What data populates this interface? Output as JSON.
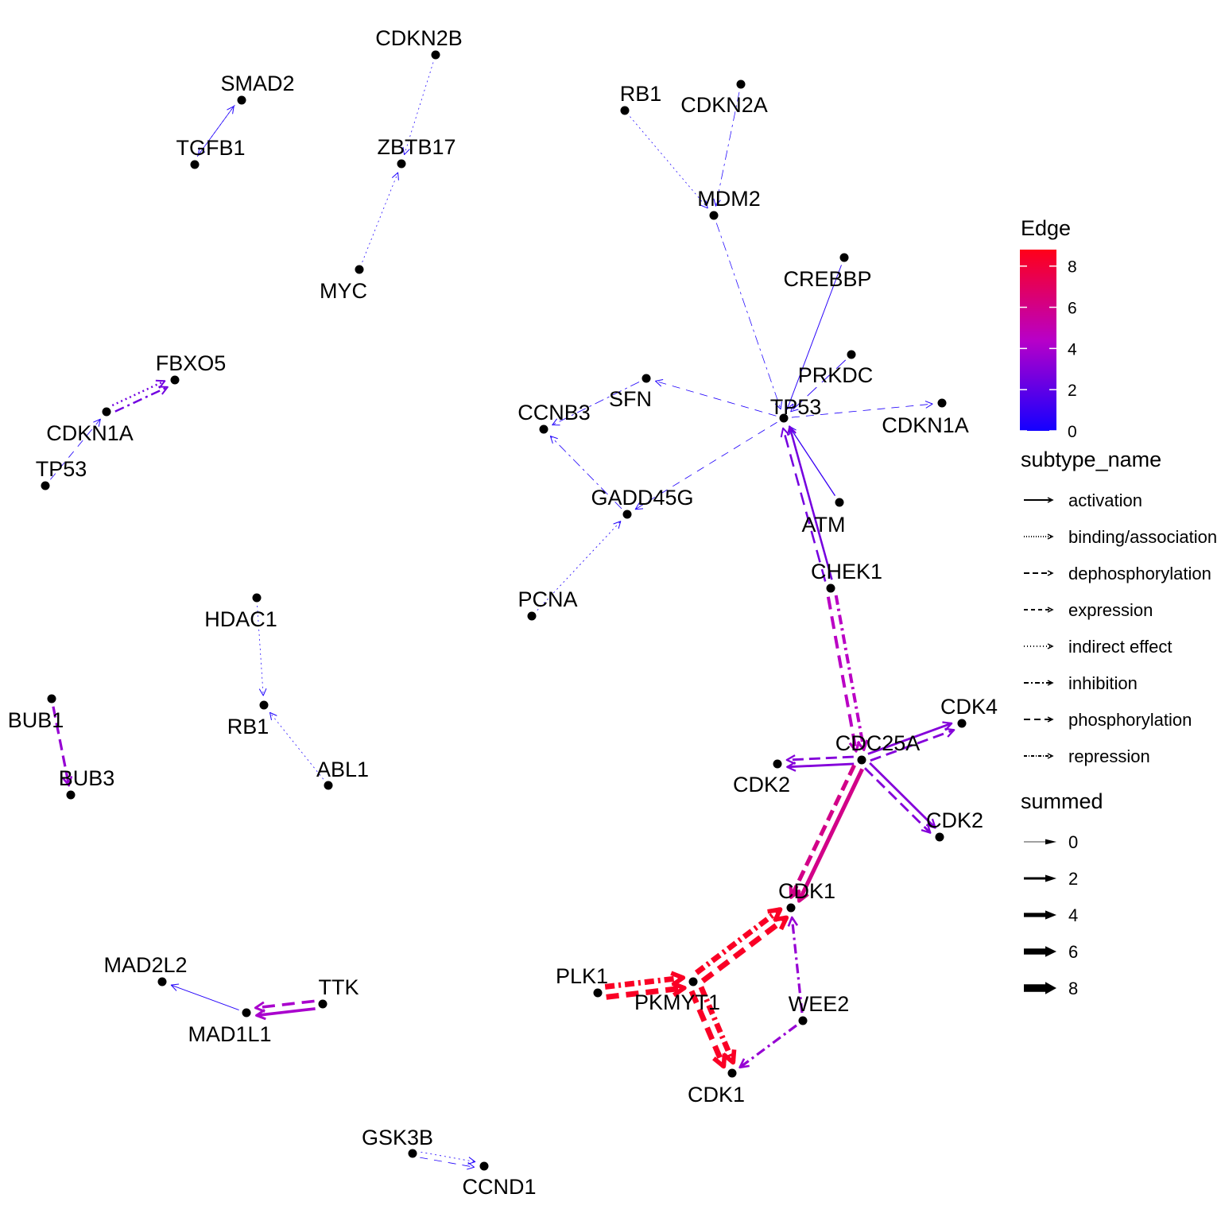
{
  "legend": {
    "edge_title": "Edge",
    "colorbar_ticks": [
      "8",
      "6",
      "4",
      "2",
      "0"
    ],
    "colorbar_low": "#1400ff",
    "colorbar_mid": "#b800c8",
    "colorbar_high": "#ff0019",
    "subtype_title": "subtype_name",
    "subtypes": [
      "activation",
      "binding/association",
      "dephosphorylation",
      "expression",
      "indirect effect",
      "inhibition",
      "phosphorylation",
      "repression"
    ],
    "summed_title": "summed",
    "summed_values": [
      "0",
      "2",
      "4",
      "6",
      "8"
    ]
  },
  "nodes": [
    {
      "id": "smad2",
      "label": "SMAD2"
    },
    {
      "id": "tgfb1",
      "label": "TGFB1"
    },
    {
      "id": "cdkn2b",
      "label": "CDKN2B"
    },
    {
      "id": "zbtb17",
      "label": "ZBTB17"
    },
    {
      "id": "myc",
      "label": "MYC"
    },
    {
      "id": "rb1_top",
      "label": "RB1"
    },
    {
      "id": "cdkn2a",
      "label": "CDKN2A"
    },
    {
      "id": "mdm2",
      "label": "MDM2"
    },
    {
      "id": "crebbp",
      "label": "CREBBP"
    },
    {
      "id": "prkdc",
      "label": "PRKDC"
    },
    {
      "id": "tp53_main",
      "label": "TP53"
    },
    {
      "id": "cdkn1a_main",
      "label": "CDKN1A"
    },
    {
      "id": "sfn",
      "label": "SFN"
    },
    {
      "id": "ccnb3",
      "label": "CCNB3"
    },
    {
      "id": "gadd45g",
      "label": "GADD45G"
    },
    {
      "id": "pcna",
      "label": "PCNA"
    },
    {
      "id": "atm",
      "label": "ATM"
    },
    {
      "id": "chek1",
      "label": "CHEK1"
    },
    {
      "id": "fbxo5",
      "label": "FBXO5"
    },
    {
      "id": "cdkn1a_left",
      "label": "CDKN1A"
    },
    {
      "id": "tp53_left",
      "label": "TP53"
    },
    {
      "id": "hdac1",
      "label": "HDAC1"
    },
    {
      "id": "rb1_mid",
      "label": "RB1"
    },
    {
      "id": "abl1",
      "label": "ABL1"
    },
    {
      "id": "bub1",
      "label": "BUB1"
    },
    {
      "id": "bub3",
      "label": "BUB3"
    },
    {
      "id": "cdk4",
      "label": "CDK4"
    },
    {
      "id": "cdc25a",
      "label": "CDC25A"
    },
    {
      "id": "cdk2_a",
      "label": "CDK2"
    },
    {
      "id": "cdk2_b",
      "label": "CDK2"
    },
    {
      "id": "cdk1_top",
      "label": "CDK1"
    },
    {
      "id": "plk1",
      "label": "PLK1"
    },
    {
      "id": "pkmyt1",
      "label": "PKMYT1"
    },
    {
      "id": "wee2",
      "label": "WEE2"
    },
    {
      "id": "cdk1_bottom",
      "label": "CDK1"
    },
    {
      "id": "mad2l2",
      "label": "MAD2L2"
    },
    {
      "id": "ttk",
      "label": "TTK"
    },
    {
      "id": "mad1l1",
      "label": "MAD1L1"
    },
    {
      "id": "gsk3b",
      "label": "GSK3B"
    },
    {
      "id": "ccnd1",
      "label": "CCND1"
    }
  ],
  "edges": [
    {
      "from": "tgfb1",
      "to": "smad2",
      "subtype": "activation",
      "summed": 0.3
    },
    {
      "from": "smad2",
      "to": "tgfb1",
      "subtype": "binding/association",
      "summed": 0.3
    },
    {
      "from": "cdkn2b",
      "to": "zbtb17",
      "subtype": "binding/association",
      "summed": 0.2
    },
    {
      "from": "myc",
      "to": "zbtb17",
      "subtype": "binding/association",
      "summed": 0.2
    },
    {
      "from": "rb1_top",
      "to": "mdm2",
      "subtype": "binding/association",
      "summed": 0.2
    },
    {
      "from": "cdkn2a",
      "to": "mdm2",
      "subtype": "inhibition",
      "summed": 0.2
    },
    {
      "from": "mdm2",
      "to": "tp53_main",
      "subtype": "inhibition",
      "summed": 0.2
    },
    {
      "from": "crebbp",
      "to": "tp53_main",
      "subtype": "activation",
      "summed": 0.5
    },
    {
      "from": "prkdc",
      "to": "tp53_main",
      "subtype": "phosphorylation",
      "summed": 0.5
    },
    {
      "from": "tp53_main",
      "to": "cdkn1a_main",
      "subtype": "expression",
      "summed": 0.3
    },
    {
      "from": "tp53_main",
      "to": "sfn",
      "subtype": "expression",
      "summed": 0.3
    },
    {
      "from": "tp53_main",
      "to": "gadd45g",
      "subtype": "expression",
      "summed": 0.3
    },
    {
      "from": "sfn",
      "to": "ccnb3",
      "subtype": "inhibition",
      "summed": 0.3
    },
    {
      "from": "gadd45g",
      "to": "ccnb3",
      "subtype": "inhibition",
      "summed": 0.3
    },
    {
      "from": "pcna",
      "to": "gadd45g",
      "subtype": "binding/association",
      "summed": 0.3
    },
    {
      "from": "atm",
      "to": "tp53_main",
      "subtype": "activation",
      "summed": 1.0
    },
    {
      "from": "chek1",
      "to": "tp53_main",
      "subtype": "phosphorylation",
      "summed": 2.6
    },
    {
      "from": "chek1",
      "to": "tp53_main",
      "subtype": "activation",
      "summed": 2.6
    },
    {
      "from": "chek1",
      "to": "cdc25a",
      "subtype": "inhibition",
      "summed": 4.5
    },
    {
      "from": "chek1",
      "to": "cdc25a",
      "subtype": "phosphorylation",
      "summed": 4.5
    },
    {
      "from": "cdkn1a_left",
      "to": "fbxo5",
      "subtype": "binding/association",
      "summed": 2.5
    },
    {
      "from": "cdkn1a_left",
      "to": "fbxo5",
      "subtype": "inhibition",
      "summed": 2.5
    },
    {
      "from": "tp53_left",
      "to": "cdkn1a_left",
      "subtype": "expression",
      "summed": 0.3
    },
    {
      "from": "hdac1",
      "to": "rb1_mid",
      "subtype": "binding/association",
      "summed": 0.2
    },
    {
      "from": "abl1",
      "to": "rb1_mid",
      "subtype": "binding/association",
      "summed": 0.2
    },
    {
      "from": "bub1",
      "to": "bub3",
      "subtype": "dephosphorylation",
      "summed": 3.5
    },
    {
      "from": "cdc25a",
      "to": "cdk4",
      "subtype": "activation",
      "summed": 3.0
    },
    {
      "from": "cdc25a",
      "to": "cdk4",
      "subtype": "dephosphorylation",
      "summed": 3.0
    },
    {
      "from": "cdc25a",
      "to": "cdk2_a",
      "subtype": "activation",
      "summed": 3.0
    },
    {
      "from": "cdc25a",
      "to": "cdk2_a",
      "subtype": "dephosphorylation",
      "summed": 3.0
    },
    {
      "from": "cdc25a",
      "to": "cdk2_b",
      "subtype": "activation",
      "summed": 3.0
    },
    {
      "from": "cdc25a",
      "to": "cdk2_b",
      "subtype": "dephosphorylation",
      "summed": 3.0
    },
    {
      "from": "cdc25a",
      "to": "cdk1_top",
      "subtype": "activation",
      "summed": 6.0
    },
    {
      "from": "cdc25a",
      "to": "cdk1_top",
      "subtype": "dephosphorylation",
      "summed": 6.0
    },
    {
      "from": "pkmyt1",
      "to": "cdk1_top",
      "subtype": "inhibition",
      "summed": 8.5
    },
    {
      "from": "pkmyt1",
      "to": "cdk1_top",
      "subtype": "phosphorylation",
      "summed": 8.5
    },
    {
      "from": "plk1",
      "to": "pkmyt1",
      "subtype": "inhibition",
      "summed": 8.5
    },
    {
      "from": "plk1",
      "to": "pkmyt1",
      "subtype": "phosphorylation",
      "summed": 8.5
    },
    {
      "from": "pkmyt1",
      "to": "cdk1_bottom",
      "subtype": "inhibition",
      "summed": 8.5
    },
    {
      "from": "pkmyt1",
      "to": "cdk1_bottom",
      "subtype": "phosphorylation",
      "summed": 8.5
    },
    {
      "from": "wee2",
      "to": "cdk1_top",
      "subtype": "inhibition",
      "summed": 3.5
    },
    {
      "from": "wee2",
      "to": "cdk1_bottom",
      "subtype": "inhibition",
      "summed": 3.5
    },
    {
      "from": "ttk",
      "to": "mad1l1",
      "subtype": "activation",
      "summed": 4.0
    },
    {
      "from": "ttk",
      "to": "mad1l1",
      "subtype": "phosphorylation",
      "summed": 4.0
    },
    {
      "from": "mad1l1",
      "to": "mad2l2",
      "subtype": "activation",
      "summed": 0.4
    },
    {
      "from": "gsk3b",
      "to": "ccnd1",
      "subtype": "binding/association",
      "summed": 0.3
    },
    {
      "from": "gsk3b",
      "to": "ccnd1",
      "subtype": "expression",
      "summed": 0.3
    }
  ]
}
